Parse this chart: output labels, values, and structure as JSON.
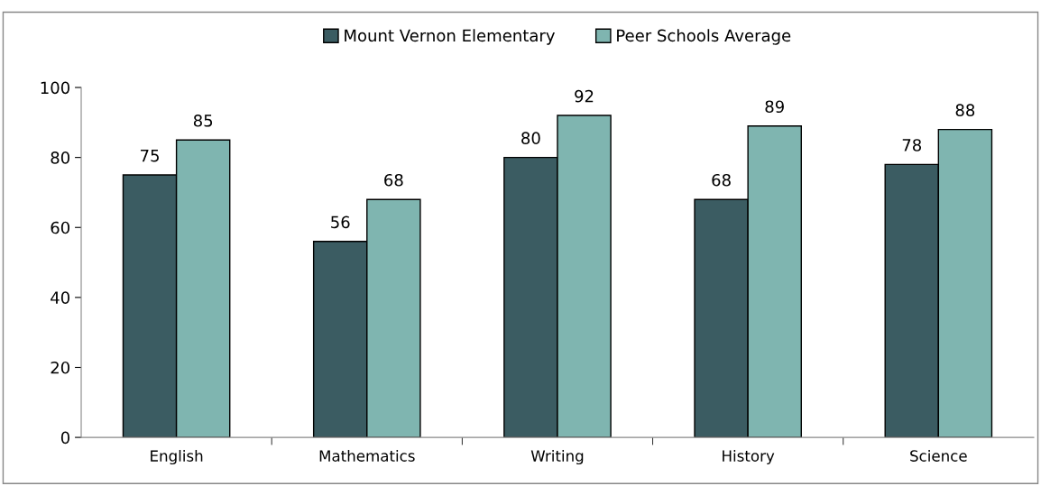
{
  "chart_data": {
    "type": "bar",
    "categories": [
      "English",
      "Mathematics",
      "Writing",
      "History",
      "Science"
    ],
    "series": [
      {
        "name": "Mount Vernon Elementary",
        "color": "#3b5c62",
        "values": [
          75,
          56,
          80,
          68,
          78
        ]
      },
      {
        "name": "Peer Schools Average",
        "color": "#7fb5b0",
        "values": [
          85,
          68,
          92,
          89,
          88
        ]
      }
    ],
    "ylim": [
      0,
      100
    ],
    "yticks": [
      0,
      20,
      40,
      60,
      80,
      100
    ],
    "grid": false,
    "legend": "top",
    "data_labels": true
  }
}
